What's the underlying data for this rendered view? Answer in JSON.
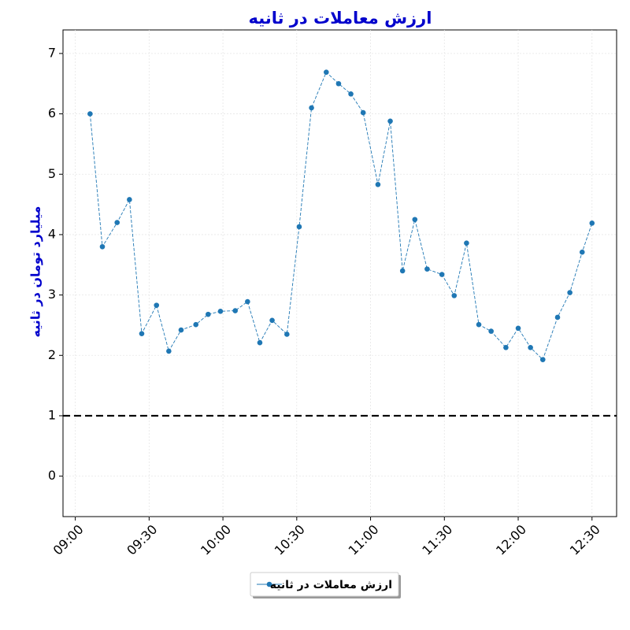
{
  "chart_data": {
    "type": "line",
    "title": "ارزش معاملات در ثانیه",
    "y_label": "میلیارد تومان در ثانیه",
    "x": [
      "09:06",
      "09:11",
      "09:17",
      "09:22",
      "09:27",
      "09:33",
      "09:38",
      "09:43",
      "09:49",
      "09:54",
      "09:59",
      "10:05",
      "10:10",
      "10:15",
      "10:20",
      "10:26",
      "10:31",
      "10:36",
      "10:42",
      "10:47",
      "10:52",
      "10:57",
      "11:03",
      "11:08",
      "11:13",
      "11:18",
      "11:23",
      "11:29",
      "11:34",
      "11:39",
      "11:44",
      "11:49",
      "11:55",
      "12:00",
      "12:05",
      "12:10",
      "12:16",
      "12:21",
      "12:26",
      "12:30"
    ],
    "series": [
      {
        "name": "ارزش معاملات در ثانیه",
        "color": "#1f77b4",
        "values": [
          6.0,
          3.8,
          4.2,
          4.58,
          2.36,
          2.83,
          2.07,
          2.42,
          2.51,
          2.68,
          2.73,
          2.74,
          2.89,
          2.21,
          2.58,
          2.35,
          4.13,
          6.1,
          6.69,
          6.5,
          6.33,
          6.02,
          4.83,
          5.88,
          3.4,
          4.25,
          3.43,
          3.34,
          2.99,
          3.86,
          2.51,
          2.4,
          2.13,
          2.45,
          2.13,
          1.93,
          2.63,
          3.04,
          3.71,
          4.19
        ]
      }
    ],
    "xlim": [
      "08:55",
      "12:40"
    ],
    "xticks": [
      "09:00",
      "09:30",
      "10:00",
      "10:30",
      "11:00",
      "11:30",
      "12:00",
      "12:30"
    ],
    "ylim": [
      -0.67,
      7.39
    ],
    "yticks": [
      0,
      1,
      2,
      3,
      4,
      5,
      6,
      7
    ],
    "hline": 1,
    "grid": true,
    "legend": "lower center"
  }
}
